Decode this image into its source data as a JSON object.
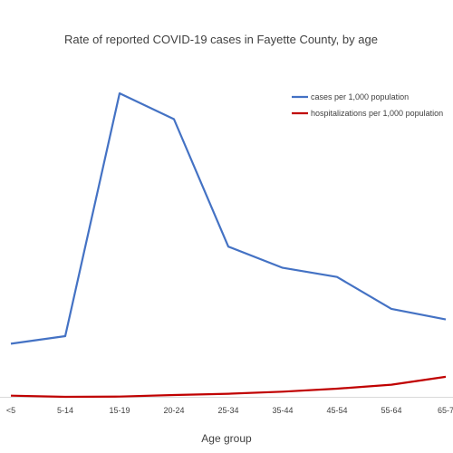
{
  "chart_data": {
    "type": "line",
    "title": "Rate of reported COVID-19 cases in Fayette County, by age",
    "xlabel": "Age group",
    "ylabel": "",
    "categories": [
      "<5",
      "5-14",
      "15-19",
      "20-24",
      "25-34",
      "35-44",
      "45-54",
      "55-64",
      "65-7"
    ],
    "ylim": [
      0,
      100
    ],
    "grid": false,
    "legend_position": "top-right",
    "series": [
      {
        "name": "cases per 1,000 population",
        "color": "#4472C4",
        "values": [
          17.5,
          20.0,
          100.0,
          91.5,
          49.5,
          42.5,
          39.5,
          29.0,
          25.5
        ]
      },
      {
        "name": "hospitalizations per 1,000 population",
        "color": "#C00000",
        "values": [
          0.4,
          0.0,
          0.1,
          0.6,
          1.0,
          1.7,
          2.7,
          4.0,
          6.6
        ]
      }
    ]
  }
}
